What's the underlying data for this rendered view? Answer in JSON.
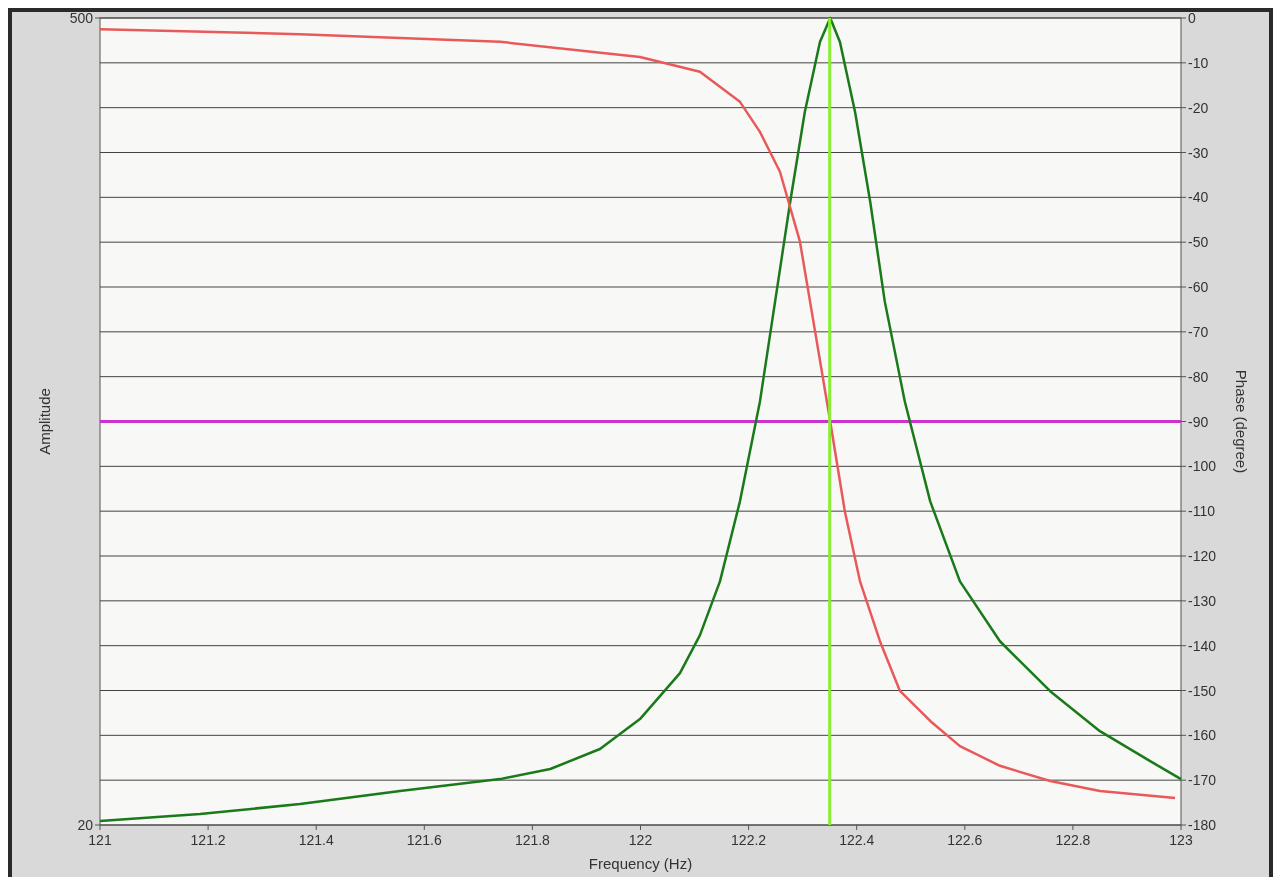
{
  "chart_data": {
    "type": "line",
    "xlabel": "Frequency (Hz)",
    "ylabel": "Amplitude",
    "y2label": "Phase (degree)",
    "xlim": [
      121,
      123
    ],
    "xticks": [
      121,
      121.2,
      121.4,
      121.6,
      121.8,
      122,
      122.2,
      122.4,
      122.6,
      122.8,
      123
    ],
    "ylim": [
      20,
      500
    ],
    "yticks": [
      20,
      500
    ],
    "y2lim": [
      -180,
      0
    ],
    "y2ticks": [
      0,
      -10,
      -20,
      -30,
      -40,
      -50,
      -60,
      -70,
      -80,
      -90,
      -100,
      -110,
      -120,
      -130,
      -140,
      -150,
      -160,
      -170,
      -180
    ],
    "grid": "y",
    "series": [
      {
        "color": "#1a7a1a",
        "x": [
          121,
          121.185,
          121.37,
          121.555,
          121.74,
          121.833,
          121.925,
          121.999,
          122.073,
          122.11,
          122.147,
          122.184,
          122.221,
          122.249,
          122.277,
          122.304,
          122.332,
          122.351,
          122.369,
          122.397,
          122.425,
          122.452,
          122.489,
          122.536,
          122.591,
          122.665,
          122.758,
          122.85,
          122.943,
          123
        ],
        "values": [
          22.4,
          26.5,
          32.5,
          40.2,
          47.3,
          53.3,
          65.2,
          83,
          110.3,
          132.9,
          164.9,
          212.5,
          271.9,
          331.3,
          390.7,
          444.1,
          485.7,
          500,
          485.7,
          444.1,
          390.7,
          331.3,
          271.9,
          212.5,
          164.9,
          129.3,
          99.6,
          75.8,
          58,
          47.3
        ]
      },
      {
        "color": "#e85a5a",
        "axis": "y2",
        "x": [
          121,
          121.37,
          121.74,
          121.999,
          122.11,
          122.184,
          122.221,
          122.258,
          122.295,
          122.323,
          122.351,
          122.378,
          122.406,
          122.443,
          122.48,
          122.536,
          122.591,
          122.665,
          122.758,
          122.85,
          122.989
        ],
        "values": [
          -2.5,
          -3.6,
          -5.3,
          -8.7,
          -12,
          -18.7,
          -25.4,
          -34.3,
          -49.9,
          -69.9,
          -90,
          -110,
          -125.6,
          -139,
          -150.1,
          -156.8,
          -162.4,
          -166.8,
          -170.2,
          -172.4,
          -174
        ]
      }
    ],
    "ref_lines": [
      {
        "axis": "y2",
        "value": -90,
        "color": "#cc33cc"
      },
      {
        "axis": "x",
        "value": 122.35,
        "color": "#88ee33"
      }
    ]
  }
}
